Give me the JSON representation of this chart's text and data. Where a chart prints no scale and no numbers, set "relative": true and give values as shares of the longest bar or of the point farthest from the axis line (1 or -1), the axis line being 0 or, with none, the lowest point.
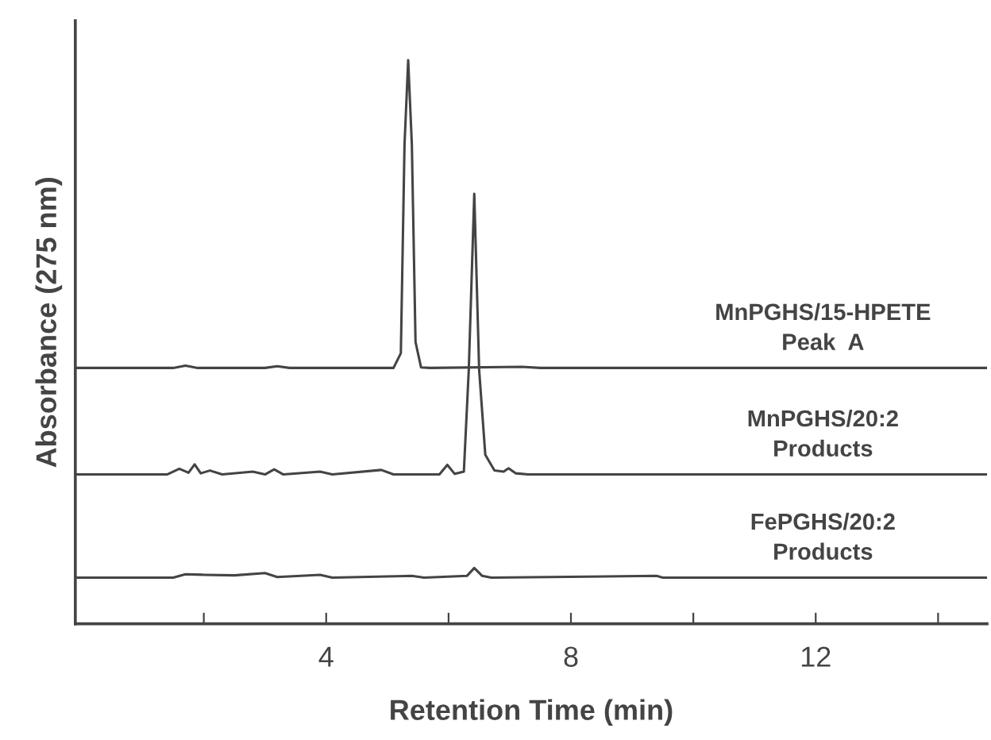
{
  "chart_data": {
    "type": "line",
    "relative": true,
    "xlabel": "Retention Time (min)",
    "ylabel": "Absorbance (275 nm)",
    "xlim": [
      -0.1,
      14.8
    ],
    "xticks": [
      {
        "value": 2,
        "label": null
      },
      4,
      {
        "value": 6,
        "label": null
      },
      8,
      {
        "value": 10,
        "label": null
      },
      12,
      {
        "value": 14,
        "label": null
      }
    ],
    "grid": false,
    "legend": false,
    "marker": "none",
    "line_style": "solid",
    "series": [
      {
        "name": "MnPGHS/15-HPETE\nPeak  A",
        "color": "#444444",
        "x": [
          -0.1,
          1.5,
          1.7,
          1.9,
          3.0,
          3.2,
          3.4,
          5.1,
          5.22,
          5.28,
          5.34,
          5.4,
          5.46,
          5.55,
          5.7,
          7.2,
          7.5,
          14.8
        ],
        "values": [
          0.454,
          0.454,
          0.458,
          0.454,
          0.454,
          0.457,
          0.454,
          0.454,
          0.48,
          0.85,
          1.0,
          0.85,
          0.5,
          0.455,
          0.454,
          0.456,
          0.454,
          0.454
        ]
      },
      {
        "name": "MnPGHS/20:2\nProducts",
        "color": "#444444",
        "x": [
          -0.1,
          1.4,
          1.6,
          1.75,
          1.85,
          1.95,
          2.1,
          2.3,
          2.8,
          3.0,
          3.15,
          3.3,
          3.9,
          4.1,
          4.9,
          5.1,
          5.85,
          5.98,
          6.1,
          6.25,
          6.33,
          6.42,
          6.5,
          6.6,
          6.75,
          6.9,
          6.98,
          7.1,
          7.3,
          14.8
        ],
        "values": [
          0.265,
          0.265,
          0.275,
          0.268,
          0.283,
          0.267,
          0.272,
          0.265,
          0.27,
          0.265,
          0.274,
          0.265,
          0.27,
          0.265,
          0.273,
          0.265,
          0.265,
          0.282,
          0.266,
          0.27,
          0.45,
          0.763,
          0.45,
          0.3,
          0.272,
          0.27,
          0.276,
          0.267,
          0.265,
          0.265
        ]
      },
      {
        "name": "FePGHS/20:2\nProducts",
        "color": "#444444",
        "x": [
          -0.1,
          1.5,
          1.7,
          2.0,
          2.5,
          3.0,
          3.2,
          3.9,
          4.1,
          5.4,
          5.6,
          6.3,
          6.42,
          6.55,
          6.7,
          9.4,
          9.5,
          14.8
        ],
        "values": [
          0.082,
          0.082,
          0.088,
          0.087,
          0.086,
          0.09,
          0.083,
          0.087,
          0.082,
          0.085,
          0.082,
          0.085,
          0.099,
          0.085,
          0.082,
          0.085,
          0.082,
          0.082
        ]
      }
    ]
  }
}
